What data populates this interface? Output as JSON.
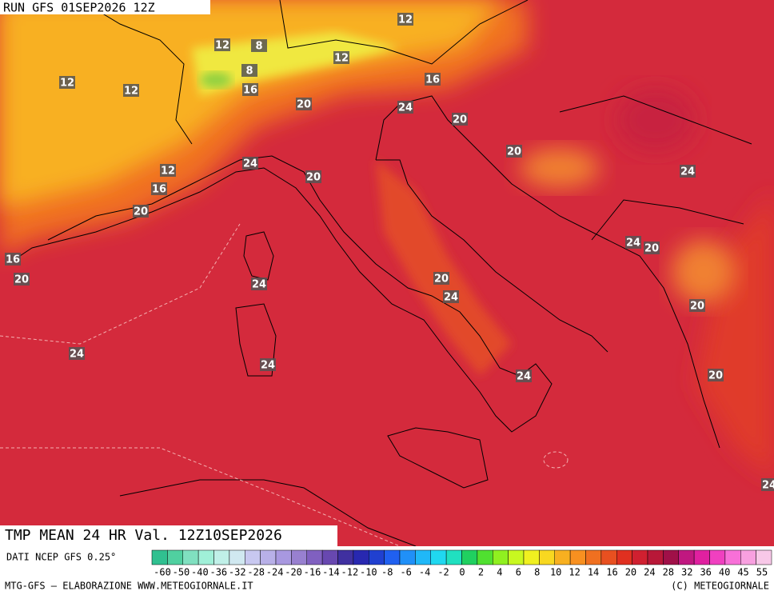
{
  "header": {
    "run": "RUN GFS 01SEP2026 12Z"
  },
  "map": {
    "contour_labels": [
      12,
      12,
      8,
      8,
      12,
      12,
      12,
      16,
      16,
      20,
      24,
      20,
      20,
      24,
      12,
      24,
      20,
      16,
      20,
      24,
      20,
      16,
      24,
      20,
      20,
      24,
      20,
      24,
      24,
      24,
      20,
      24
    ]
  },
  "footer": {
    "title": "TMP MEAN 24 HR Val. 12Z10SEP2026",
    "source": "DATI NCEP GFS 0.25°",
    "scale_labels": [
      -60,
      -50,
      -40,
      -36,
      -32,
      -28,
      -24,
      -20,
      -16,
      -14,
      -12,
      -10,
      -8,
      -6,
      -4,
      -2,
      0,
      2,
      4,
      6,
      8,
      10,
      12,
      14,
      16,
      20,
      24,
      28,
      32,
      36,
      40,
      45,
      55
    ],
    "credit_left": "MTG-GFS — ELABORAZIONE WWW.METEOGIORNALE.IT",
    "credit_right": "(C) METEOGIORNALE"
  }
}
